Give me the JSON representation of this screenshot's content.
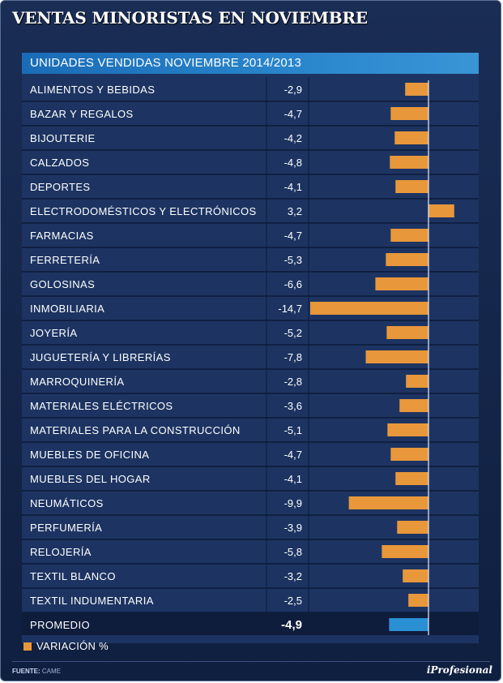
{
  "title": "VENTAS MINORISTAS EN NOVIEMBRE",
  "panel": {
    "title": "UNIDADES VENDIDAS NOVIEMBRE 2014/2013"
  },
  "legend": {
    "label": "VARIACIÓN %"
  },
  "footer": {
    "source_label": "FUENTE:",
    "source_value": "CAME",
    "brand": "iProfesional"
  },
  "colors": {
    "bar": "#e8973a",
    "average_bar": "#2b8fd3",
    "background": "#12244a"
  },
  "chart_data": {
    "type": "bar",
    "orientation": "horizontal",
    "title": "UNIDADES VENDIDAS NOVIEMBRE 2014/2013",
    "xlabel": "VARIACIÓN %",
    "ylabel": "",
    "xlim": [
      -14.7,
      3.2
    ],
    "grid": false,
    "categories": [
      "ALIMENTOS Y BEBIDAS",
      "BAZAR Y REGALOS",
      "BIJOUTERIE",
      "CALZADOS",
      "DEPORTES",
      "ELECTRODOMÉSTICOS Y ELECTRÓNICOS",
      "FARMACIAS",
      "FERRETERÍA",
      "GOLOSINAS",
      "INMOBILIARIA",
      "JOYERÍA",
      "JUGUETERÍA Y LIBRERÍAS",
      "MARROQUINERÍA",
      "MATERIALES ELÉCTRICOS",
      "MATERIALES PARA LA CONSTRUCCIÓN",
      "MUEBLES DE OFICINA",
      "MUEBLES DEL HOGAR",
      "NEUMÁTICOS",
      "PERFUMERÍA",
      "RELOJERÍA",
      "TEXTIL BLANCO",
      "TEXTIL INDUMENTARIA"
    ],
    "values": [
      -2.9,
      -4.7,
      -4.2,
      -4.8,
      -4.1,
      3.2,
      -4.7,
      -5.3,
      -6.6,
      -14.7,
      -5.2,
      -7.8,
      -2.8,
      -3.6,
      -5.1,
      -4.7,
      -4.1,
      -9.9,
      -3.9,
      -5.8,
      -3.2,
      -2.5
    ],
    "value_labels": [
      "-2,9",
      "-4,7",
      "-4,2",
      "-4,8",
      "-4,1",
      "3,2",
      "-4,7",
      "-5,3",
      "-6,6",
      "-14,7",
      "-5,2",
      "-7,8",
      "-2,8",
      "-3,6",
      "-5,1",
      "-4,7",
      "-4,1",
      "-9,9",
      "-3,9",
      "-5,8",
      "-3,2",
      "-2,5"
    ],
    "average": {
      "label": "PROMEDIO",
      "value": -4.9,
      "value_label": "-4,9"
    }
  }
}
